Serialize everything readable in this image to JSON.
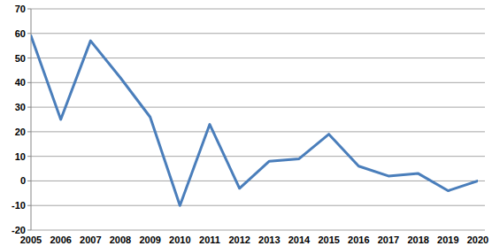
{
  "chart_data": {
    "type": "line",
    "categories": [
      "2005",
      "2006",
      "2007",
      "2008",
      "2009",
      "2010",
      "2011",
      "2012",
      "2013",
      "2014",
      "2015",
      "2016",
      "2017",
      "2018",
      "2019",
      "2020"
    ],
    "values": [
      59,
      25,
      57,
      42,
      26,
      -10,
      23,
      -3,
      8,
      9,
      19,
      6,
      2,
      3,
      -4,
      0
    ],
    "color": "#4a7ebb",
    "ylim": [
      -20,
      70
    ],
    "yticks": [
      -20,
      -10,
      0,
      10,
      20,
      30,
      40,
      50,
      60,
      70
    ],
    "grid": true
  }
}
